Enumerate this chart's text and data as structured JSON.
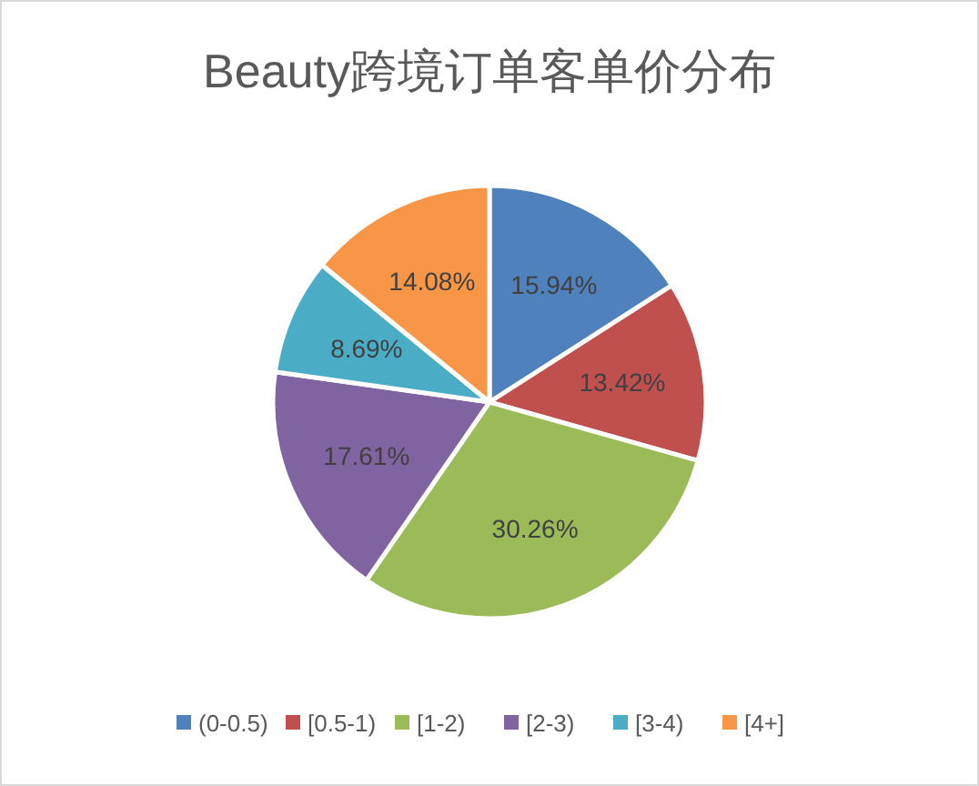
{
  "chart_data": {
    "type": "pie",
    "title": "Beauty跨境订单客单价分布",
    "categories": [
      "(0-0.5)",
      "[0.5-1)",
      "[1-2)",
      "[2-3)",
      "[3-4)",
      "[4+]"
    ],
    "values": [
      15.94,
      13.42,
      30.26,
      17.61,
      8.69,
      14.08
    ],
    "colors": [
      "#4f81bd",
      "#c0504d",
      "#9bbb59",
      "#8064a2",
      "#4bacc6",
      "#f79646"
    ],
    "value_labels": [
      "15.94%",
      "13.42%",
      "30.26%",
      "17.61%",
      "8.69%",
      "14.08%"
    ],
    "legend": "bottom"
  }
}
